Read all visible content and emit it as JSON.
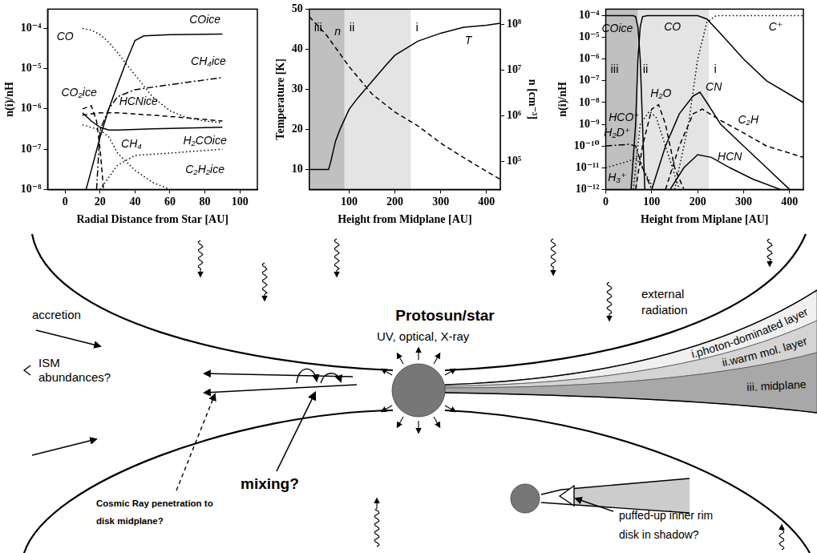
{
  "chart_data": [
    {
      "type": "line",
      "log": "y",
      "grid": false,
      "xlabel": "Radial Distance from Star [AU]",
      "ylabel": "n(i)/nH",
      "xlim": [
        -10,
        110
      ],
      "xticks": [
        0,
        20,
        40,
        60,
        80,
        100
      ],
      "ylim": [
        1e-08,
        0.0003
      ],
      "yticks": [
        {
          "value": 1e-08,
          "label": "10⁻⁸"
        },
        {
          "value": 1e-07,
          "label": "10⁻⁷"
        },
        {
          "value": 1e-06,
          "label": "10⁻⁶"
        },
        {
          "value": 1e-05,
          "label": "10⁻⁵"
        },
        {
          "value": 0.0001,
          "label": "10⁻⁴"
        }
      ],
      "series": [
        {
          "name": "CO",
          "color": "#000000",
          "line_style": "dotted",
          "x": [
            10,
            15,
            20,
            25,
            30,
            35,
            40,
            50,
            60,
            70,
            80,
            90
          ],
          "values": [
            0.0001,
            9e-05,
            7e-05,
            4.5e-05,
            2.5e-05,
            1.3e-05,
            7e-06,
            2e-06,
            9e-07,
            6e-07,
            5e-07,
            4.5e-07
          ],
          "label_at": [
            0,
            6e-05
          ]
        },
        {
          "name": "COice",
          "color": "#000000",
          "line_style": "solid",
          "x": [
            12,
            15,
            20,
            25,
            30,
            35,
            40,
            45,
            60,
            90
          ],
          "values": [
            1e-08,
            3e-08,
            2e-07,
            1e-06,
            4e-06,
            1.5e-05,
            5e-05,
            6.5e-05,
            7e-05,
            7.2e-05
          ],
          "label_at": [
            80,
            0.00016
          ]
        },
        {
          "name": "CH₄ice",
          "color": "#000000",
          "line_style": "dashdot",
          "x": [
            18,
            20,
            25,
            30,
            40,
            60,
            90
          ],
          "values": [
            1e-08,
            3e-07,
            1e-06,
            2e-06,
            3e-06,
            4e-06,
            6e-06
          ],
          "label_at": [
            82,
            1.5e-05
          ]
        },
        {
          "name": "CO₂ice",
          "color": "#000000",
          "line_style": "dashed",
          "x": [
            10,
            15,
            18,
            20,
            22
          ],
          "values": [
            1e-06,
            1.2e-06,
            5e-07,
            1e-07,
            1e-08
          ],
          "label_at": [
            8,
            2.5e-06
          ]
        },
        {
          "name": "HCNice",
          "color": "#000000",
          "line_style": "dashed",
          "x": [
            10,
            20,
            30,
            50,
            70,
            90
          ],
          "values": [
            7e-07,
            8e-07,
            8e-07,
            7e-07,
            6e-07,
            5e-07
          ],
          "label_at": [
            42,
            1.5e-06
          ]
        },
        {
          "name": "H₂COice",
          "color": "#000000",
          "line_style": "solid",
          "x": [
            10,
            15,
            20,
            25,
            30,
            50,
            90
          ],
          "values": [
            8e-07,
            5e-07,
            3.5e-07,
            3e-07,
            3e-07,
            3.2e-07,
            3.5e-07
          ],
          "label_at": [
            80,
            1.6e-07
          ]
        },
        {
          "name": "CH₄",
          "color": "#000000",
          "line_style": "dotted",
          "x": [
            10,
            20,
            25,
            30,
            40,
            50,
            60
          ],
          "values": [
            4e-07,
            3e-07,
            2e-07,
            8e-08,
            3e-08,
            1.5e-08,
            1e-08
          ],
          "label_at": [
            38,
            1.3e-07
          ]
        },
        {
          "name": "C₂H₂ice",
          "color": "#000000",
          "line_style": "dotted",
          "x": [
            20,
            25,
            30,
            40,
            60,
            90
          ],
          "values": [
            1e-08,
            2e-08,
            4e-08,
            7e-08,
            8e-08,
            1e-07
          ],
          "label_at": [
            80,
            3e-08
          ]
        }
      ]
    },
    {
      "type": "line",
      "log": "y2",
      "grid": false,
      "xlabel": "Height from Midplane [AU]",
      "ylabel": "Temperature [K]",
      "y2label": "n [cm⁻³]",
      "xlim": [
        13,
        430
      ],
      "xticks": [
        100,
        200,
        300,
        400
      ],
      "ylim": [
        5,
        50
      ],
      "yticks": [
        10,
        20,
        30,
        40,
        50
      ],
      "y2lim": [
        24000,
        220000000
      ],
      "y2ticks": [
        {
          "value": 100000,
          "label": "10⁵"
        },
        {
          "value": 1000000,
          "label": "10⁶"
        },
        {
          "value": 10000000,
          "label": "10⁷"
        },
        {
          "value": 100000000,
          "label": "10⁸"
        }
      ],
      "regions": [
        {
          "label": "iii",
          "from": 13,
          "to": 90,
          "color": "#c0c0c0"
        },
        {
          "label": "ii",
          "from": 90,
          "to": 235,
          "color": "#e4e4e4"
        },
        {
          "label": "i",
          "from": 235,
          "to": 430,
          "color": "#ffffff"
        }
      ],
      "series": [
        {
          "name": "T",
          "color": "#000000",
          "line_style": "solid",
          "x": [
            13,
            55,
            60,
            70,
            80,
            90,
            100,
            120,
            150,
            180,
            200,
            250,
            300,
            350,
            400,
            430
          ],
          "values": [
            10,
            10,
            12,
            17,
            20,
            22.5,
            25,
            28,
            32,
            36,
            38.5,
            42,
            44,
            45.5,
            46,
            46.5
          ],
          "label_at": [
            360,
            42
          ]
        },
        {
          "name": "n",
          "color": "#000000",
          "line_style": "dashed",
          "axis": "y2",
          "x": [
            13,
            50,
            100,
            150,
            200,
            250,
            300,
            350,
            400,
            430
          ],
          "values": [
            150000000,
            60000000,
            12000000,
            3000000,
            1200000,
            600000,
            250000,
            120000,
            60000,
            40000
          ],
          "label_at": [
            75,
            70000000
          ]
        }
      ]
    },
    {
      "type": "line",
      "log": "y",
      "grid": false,
      "xlabel": "Height from Miplane [AU]",
      "ylabel": "n(i)/nH",
      "xlim": [
        0,
        430
      ],
      "xticks": [
        0,
        100,
        200,
        300,
        400
      ],
      "ylim": [
        1e-12,
        0.0002
      ],
      "yticks": [
        {
          "value": 1e-12,
          "label": "10⁻¹²"
        },
        {
          "value": 1e-11,
          "label": "10⁻¹¹"
        },
        {
          "value": 1e-10,
          "label": "10⁻¹⁰"
        },
        {
          "value": 1e-09,
          "label": "10⁻⁹"
        },
        {
          "value": 1e-08,
          "label": "10⁻⁸"
        },
        {
          "value": 1e-07,
          "label": "10⁻⁷"
        },
        {
          "value": 1e-06,
          "label": "10⁻⁶"
        },
        {
          "value": 1e-05,
          "label": "10⁻⁵"
        },
        {
          "value": 0.0001,
          "label": "10⁻⁴"
        }
      ],
      "regions": [
        {
          "label": "iii",
          "from": 0,
          "to": 70,
          "color": "#c0c0c0"
        },
        {
          "label": "ii",
          "from": 70,
          "to": 225,
          "color": "#e4e4e4"
        },
        {
          "label": "i",
          "from": 225,
          "to": 430,
          "color": "#ffffff"
        }
      ],
      "series": [
        {
          "name": "COice",
          "color": "#000000",
          "line_style": "solid",
          "x": [
            0,
            60,
            65,
            70,
            75,
            80,
            85
          ],
          "values": [
            0.0001,
            0.0001,
            9e-05,
            3e-05,
            1e-06,
            1e-09,
            1e-12
          ],
          "label_at": [
            25,
            2.5e-05
          ]
        },
        {
          "name": "CO",
          "color": "#000000",
          "line_style": "solid",
          "x": [
            55,
            65,
            70,
            75,
            80,
            90,
            200,
            220,
            250,
            300,
            350,
            430
          ],
          "values": [
            1e-12,
            1e-09,
            1e-06,
            3e-05,
            9e-05,
            0.0001,
            0.0001,
            7e-05,
            1.5e-05,
            1e-06,
            1e-07,
            1e-08
          ],
          "label_at": [
            145,
            3e-05
          ]
        },
        {
          "name": "C⁺",
          "color": "#000000",
          "line_style": "dotted",
          "x": [
            150,
            180,
            200,
            220,
            240,
            430
          ],
          "values": [
            1e-12,
            1e-09,
            1e-06,
            5e-05,
            0.0001,
            0.0001
          ],
          "label_at": [
            370,
            3e-05
          ]
        },
        {
          "name": "CN",
          "color": "#000000",
          "line_style": "solid",
          "x": [
            100,
            130,
            160,
            190,
            205,
            220,
            250,
            300,
            350,
            400
          ],
          "values": [
            1e-12,
            1e-10,
            3e-09,
            2e-08,
            3e-08,
            1e-08,
            1e-09,
            1e-10,
            1e-11,
            1e-12
          ],
          "label_at": [
            235,
            5e-08
          ]
        },
        {
          "name": "C₂H",
          "color": "#000000",
          "line_style": "dashed",
          "x": [
            130,
            160,
            190,
            210,
            250,
            300,
            350,
            430
          ],
          "values": [
            1e-12,
            1e-10,
            3e-09,
            5e-09,
            1.5e-09,
            4e-10,
            1e-10,
            3e-11
          ],
          "label_at": [
            310,
            1.5e-09
          ]
        },
        {
          "name": "HCN",
          "color": "#000000",
          "line_style": "solid",
          "x": [
            140,
            170,
            200,
            230,
            270,
            320,
            380
          ],
          "values": [
            1e-12,
            1e-11,
            4e-11,
            3e-11,
            1e-11,
            3e-12,
            1e-12
          ],
          "label_at": [
            270,
            3e-11
          ]
        },
        {
          "name": "H₂O",
          "color": "#000000",
          "line_style": "dashed",
          "x": [
            65,
            80,
            100,
            115,
            130,
            150,
            170
          ],
          "values": [
            1e-12,
            1e-10,
            5e-09,
            8e-09,
            1e-09,
            1e-11,
            1e-12
          ],
          "label_at": [
            120,
            2.5e-08
          ]
        },
        {
          "name": "HCO⁺",
          "color": "#000000",
          "line_style": "dotted",
          "x": [
            60,
            75,
            95,
            110,
            130,
            160
          ],
          "values": [
            1e-12,
            1e-09,
            4e-09,
            2e-09,
            1e-10,
            1e-12
          ],
          "label_at": [
            40,
            2e-09
          ]
        },
        {
          "name": "H₂D⁺",
          "color": "#000000",
          "line_style": "dashdot",
          "x": [
            0,
            50,
            65,
            80,
            100
          ],
          "values": [
            1e-10,
            1.2e-10,
            1e-10,
            1e-11,
            1e-12
          ],
          "label_at": [
            25,
            4e-10
          ]
        },
        {
          "name": "H₃⁺",
          "color": "#000000",
          "line_style": "dotted",
          "x": [
            0,
            50,
            65,
            80,
            105
          ],
          "values": [
            1e-11,
            2e-11,
            3e-11,
            1e-11,
            1e-12
          ],
          "label_at": [
            25,
            3.5e-12
          ]
        }
      ]
    }
  ],
  "diagram": {
    "star": "Protosun/star",
    "star_radiation": "UV, optical, X-ray",
    "external": "external radiation",
    "accretion": "accretion",
    "ism": "ISM abundances?",
    "mixing": "mixing?",
    "cosmic_ray": "Cosmic Ray penetration to disk midplane?",
    "shadow": "puffed-up inner rim disk in shadow?",
    "layers": [
      "i.photon-dominated layer",
      "ii.warm mol. layer",
      "iii. midplane"
    ]
  }
}
